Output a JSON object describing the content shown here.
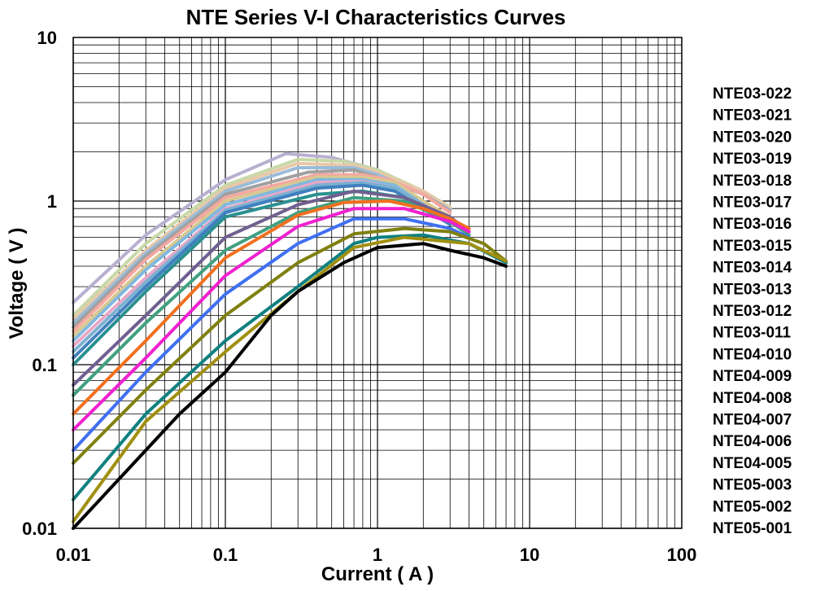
{
  "chart_data": {
    "type": "line",
    "title": "NTE Series V-I Characteristics Curves",
    "xlabel": "Current ( A )",
    "ylabel": "Voltage ( V )",
    "xscale": "log",
    "yscale": "log",
    "xlim": [
      0.01,
      100
    ],
    "ylim": [
      0.01,
      10
    ],
    "grid": true,
    "legend_position": "right",
    "x_ticks": [
      "0.01",
      "0.1",
      "1",
      "10",
      "100"
    ],
    "y_ticks": [
      "10",
      "1",
      "0.1",
      "0.01"
    ],
    "series": [
      {
        "name": "NTE03-022",
        "color": "#B8B0D0",
        "points": [
          [
            0.01,
            0.24
          ],
          [
            0.03,
            0.62
          ],
          [
            0.1,
            1.35
          ],
          [
            0.25,
            1.95
          ],
          [
            0.5,
            1.85
          ],
          [
            1,
            1.55
          ],
          [
            2,
            1.1
          ],
          [
            3,
            0.9
          ]
        ]
      },
      {
        "name": "NTE03-021",
        "color": "#C8D8A8",
        "points": [
          [
            0.01,
            0.2
          ],
          [
            0.03,
            0.55
          ],
          [
            0.1,
            1.25
          ],
          [
            0.3,
            1.8
          ],
          [
            0.6,
            1.75
          ],
          [
            1,
            1.55
          ],
          [
            2,
            1.15
          ],
          [
            3,
            0.92
          ]
        ]
      },
      {
        "name": "NTE03-020",
        "color": "#E8C8A8",
        "points": [
          [
            0.01,
            0.19
          ],
          [
            0.03,
            0.5
          ],
          [
            0.1,
            1.2
          ],
          [
            0.3,
            1.7
          ],
          [
            0.7,
            1.65
          ],
          [
            1,
            1.5
          ],
          [
            2,
            1.15
          ],
          [
            3,
            0.9
          ]
        ]
      },
      {
        "name": "NTE03-019",
        "color": "#9ABCD8",
        "points": [
          [
            0.01,
            0.18
          ],
          [
            0.03,
            0.48
          ],
          [
            0.1,
            1.15
          ],
          [
            0.3,
            1.6
          ],
          [
            0.7,
            1.6
          ],
          [
            1,
            1.45
          ],
          [
            2,
            1.1
          ],
          [
            3,
            0.88
          ]
        ]
      },
      {
        "name": "NTE03-018",
        "color": "#A0A0A0",
        "points": [
          [
            0.01,
            0.17
          ],
          [
            0.03,
            0.46
          ],
          [
            0.1,
            1.1
          ],
          [
            0.35,
            1.5
          ],
          [
            0.7,
            1.55
          ],
          [
            1,
            1.4
          ],
          [
            2,
            1.1
          ],
          [
            3,
            0.87
          ]
        ]
      },
      {
        "name": "NTE03-017",
        "color": "#F4A8A0",
        "points": [
          [
            0.01,
            0.16
          ],
          [
            0.03,
            0.44
          ],
          [
            0.1,
            1.05
          ],
          [
            0.4,
            1.45
          ],
          [
            0.8,
            1.45
          ],
          [
            1.2,
            1.35
          ],
          [
            2,
            1.1
          ],
          [
            3,
            0.85
          ]
        ]
      },
      {
        "name": "NTE03-016",
        "color": "#D8C890",
        "points": [
          [
            0.01,
            0.15
          ],
          [
            0.03,
            0.4
          ],
          [
            0.1,
            1.0
          ],
          [
            0.4,
            1.4
          ],
          [
            0.8,
            1.4
          ],
          [
            1.3,
            1.3
          ],
          [
            2,
            1.0
          ],
          [
            3,
            0.8
          ]
        ]
      },
      {
        "name": "NTE03-015",
        "color": "#80B8E0",
        "points": [
          [
            0.01,
            0.14
          ],
          [
            0.03,
            0.38
          ],
          [
            0.1,
            0.95
          ],
          [
            0.4,
            1.35
          ],
          [
            0.8,
            1.35
          ],
          [
            1.3,
            1.25
          ],
          [
            2,
            0.95
          ],
          [
            3,
            0.75
          ]
        ]
      },
      {
        "name": "NTE03-014",
        "color": "#E8A8C8",
        "points": [
          [
            0.01,
            0.13
          ],
          [
            0.03,
            0.34
          ],
          [
            0.1,
            0.9
          ],
          [
            0.4,
            1.3
          ],
          [
            0.8,
            1.32
          ],
          [
            1.3,
            1.2
          ],
          [
            2,
            0.95
          ],
          [
            3,
            0.75
          ]
        ]
      },
      {
        "name": "NTE03-013",
        "color": "#7AB0D0",
        "points": [
          [
            0.01,
            0.12
          ],
          [
            0.03,
            0.32
          ],
          [
            0.1,
            0.88
          ],
          [
            0.4,
            1.25
          ],
          [
            0.8,
            1.3
          ],
          [
            1.3,
            1.2
          ],
          [
            2,
            0.95
          ],
          [
            3,
            0.75
          ]
        ]
      },
      {
        "name": "NTE03-012",
        "color": "#4080C0",
        "points": [
          [
            0.01,
            0.11
          ],
          [
            0.03,
            0.3
          ],
          [
            0.1,
            0.85
          ],
          [
            0.4,
            1.2
          ],
          [
            0.8,
            1.25
          ],
          [
            1.3,
            1.15
          ],
          [
            2,
            0.9
          ],
          [
            3,
            0.72
          ]
        ]
      },
      {
        "name": "NTE03-011",
        "color": "#2A9090",
        "points": [
          [
            0.01,
            0.1
          ],
          [
            0.03,
            0.28
          ],
          [
            0.1,
            0.8
          ],
          [
            0.4,
            1.1
          ],
          [
            0.8,
            1.15
          ],
          [
            1.5,
            1.05
          ],
          [
            2.5,
            0.85
          ],
          [
            3.5,
            0.7
          ]
        ]
      },
      {
        "name": "NTE04-010",
        "color": "#706090",
        "points": [
          [
            0.01,
            0.075
          ],
          [
            0.03,
            0.2
          ],
          [
            0.1,
            0.6
          ],
          [
            0.3,
            0.95
          ],
          [
            0.7,
            1.15
          ],
          [
            1.5,
            1.05
          ],
          [
            3,
            0.8
          ],
          [
            4,
            0.65
          ]
        ]
      },
      {
        "name": "NTE04-009",
        "color": "#40A080",
        "points": [
          [
            0.01,
            0.065
          ],
          [
            0.03,
            0.18
          ],
          [
            0.1,
            0.5
          ],
          [
            0.3,
            0.85
          ],
          [
            0.7,
            1.05
          ],
          [
            1.5,
            1.0
          ],
          [
            3,
            0.75
          ],
          [
            4,
            0.62
          ]
        ]
      },
      {
        "name": "NTE04-008",
        "color": "#F07020",
        "points": [
          [
            0.01,
            0.05
          ],
          [
            0.03,
            0.14
          ],
          [
            0.1,
            0.45
          ],
          [
            0.3,
            0.82
          ],
          [
            0.6,
            0.98
          ],
          [
            1.2,
            1.0
          ],
          [
            2,
            0.9
          ],
          [
            3,
            0.78
          ],
          [
            4,
            0.68
          ]
        ]
      },
      {
        "name": "NTE04-007",
        "color": "#F020D0",
        "points": [
          [
            0.01,
            0.04
          ],
          [
            0.03,
            0.11
          ],
          [
            0.1,
            0.35
          ],
          [
            0.3,
            0.7
          ],
          [
            0.7,
            0.9
          ],
          [
            1.5,
            0.9
          ],
          [
            3,
            0.75
          ],
          [
            4,
            0.65
          ]
        ]
      },
      {
        "name": "NTE04-006",
        "color": "#4070F0",
        "points": [
          [
            0.01,
            0.03
          ],
          [
            0.03,
            0.09
          ],
          [
            0.1,
            0.27
          ],
          [
            0.3,
            0.55
          ],
          [
            0.7,
            0.78
          ],
          [
            1.5,
            0.78
          ],
          [
            3,
            0.68
          ],
          [
            4,
            0.6
          ]
        ]
      },
      {
        "name": "NTE04-005",
        "color": "#808010",
        "points": [
          [
            0.01,
            0.025
          ],
          [
            0.03,
            0.07
          ],
          [
            0.1,
            0.2
          ],
          [
            0.3,
            0.42
          ],
          [
            0.7,
            0.63
          ],
          [
            1.5,
            0.68
          ],
          [
            3,
            0.65
          ],
          [
            5,
            0.55
          ],
          [
            7,
            0.43
          ]
        ]
      },
      {
        "name": "NTE05-003",
        "color": "#108080",
        "points": [
          [
            0.01,
            0.015
          ],
          [
            0.03,
            0.05
          ],
          [
            0.1,
            0.14
          ],
          [
            0.3,
            0.3
          ],
          [
            0.7,
            0.55
          ],
          [
            1,
            0.6
          ],
          [
            2,
            0.62
          ],
          [
            4,
            0.55
          ],
          [
            7,
            0.42
          ]
        ]
      },
      {
        "name": "NTE05-002",
        "color": "#A09010",
        "points": [
          [
            0.01,
            0.011
          ],
          [
            0.03,
            0.045
          ],
          [
            0.1,
            0.12
          ],
          [
            0.3,
            0.28
          ],
          [
            0.7,
            0.52
          ],
          [
            1.5,
            0.6
          ],
          [
            4,
            0.55
          ],
          [
            7,
            0.43
          ]
        ]
      },
      {
        "name": "NTE05-001",
        "color": "#000000",
        "points": [
          [
            0.01,
            0.01
          ],
          [
            0.02,
            0.02
          ],
          [
            0.03,
            0.03
          ],
          [
            0.05,
            0.05
          ],
          [
            0.1,
            0.09
          ],
          [
            0.2,
            0.2
          ],
          [
            0.3,
            0.28
          ],
          [
            0.6,
            0.42
          ],
          [
            1,
            0.52
          ],
          [
            2,
            0.55
          ],
          [
            3,
            0.5
          ],
          [
            5,
            0.45
          ],
          [
            7,
            0.4
          ]
        ]
      }
    ]
  }
}
